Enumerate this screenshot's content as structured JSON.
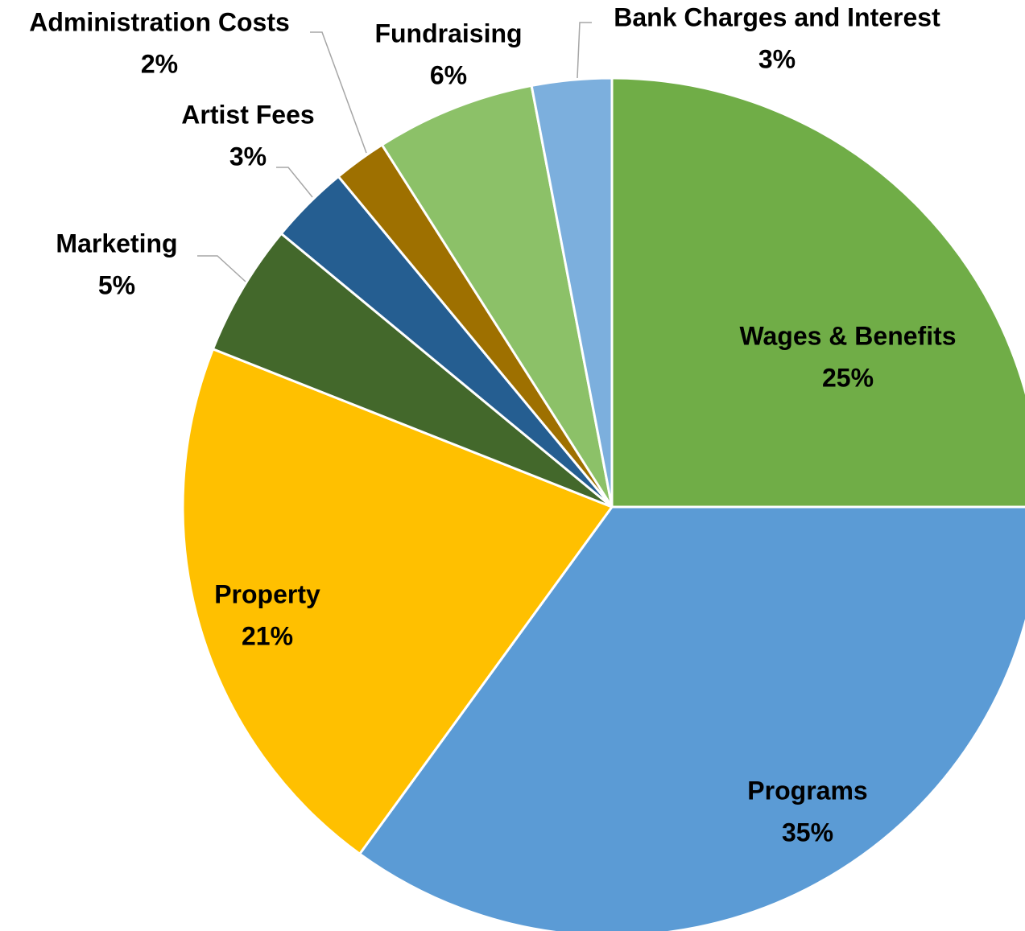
{
  "chart_data": {
    "type": "pie",
    "categories": [
      "Wages & Benefits",
      "Programs",
      "Property",
      "Marketing",
      "Artist Fees",
      "Administration Costs",
      "Fundraising",
      "Bank Charges and Interest"
    ],
    "values": [
      25,
      35,
      21,
      5,
      3,
      2,
      6,
      3
    ],
    "value_labels": [
      "25%",
      "35%",
      "21%",
      "5%",
      "3%",
      "2%",
      "6%",
      "3%"
    ],
    "colors": [
      "#70ad47",
      "#5b9bd5",
      "#ffc000",
      "#43682b",
      "#255e91",
      "#9e7000",
      "#8cc168",
      "#7cafdd"
    ]
  }
}
